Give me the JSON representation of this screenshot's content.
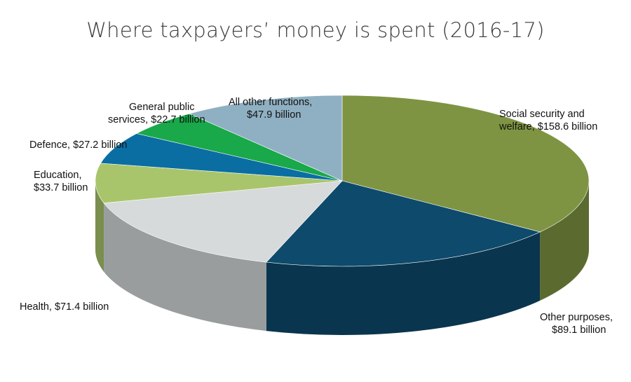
{
  "chart_data": {
    "type": "pie",
    "title": "Where taxpayers’ money is spent (2016-17)",
    "unit": "billion",
    "slices": [
      {
        "label": "Social security and welfare, $158.6 billion",
        "lines": [
          "Social security and",
          "welfare, $158.6 billion"
        ],
        "value": 158.6,
        "color": "#7e9442"
      },
      {
        "label": "Other purposes, $89.1 billion",
        "lines": [
          "Other purposes,",
          "$89.1 billion"
        ],
        "value": 89.1,
        "color": "#0e4a6c"
      },
      {
        "label": "Health, $71.4 billion",
        "lines": [
          "Health, $71.4 billion"
        ],
        "value": 71.4,
        "color": "#d6dadb"
      },
      {
        "label": "Education, $33.7 billion",
        "lines": [
          "Education,",
          "$33.7 billion"
        ],
        "value": 33.7,
        "color": "#a9c56c"
      },
      {
        "label": "Defence, $27.2 billion",
        "lines": [
          "Defence, $27.2 billion"
        ],
        "value": 27.2,
        "color": "#0a6ea3"
      },
      {
        "label": "General public services, $22.7 billion",
        "lines": [
          "General public",
          "services, $22.7 billion"
        ],
        "value": 22.7,
        "color": "#19a84a"
      },
      {
        "label": "All other functions, $47.9 billion",
        "lines": [
          "All other functions,",
          "$47.9 billion"
        ],
        "value": 47.9,
        "color": "#8fb0c2"
      }
    ],
    "legend": "none"
  }
}
